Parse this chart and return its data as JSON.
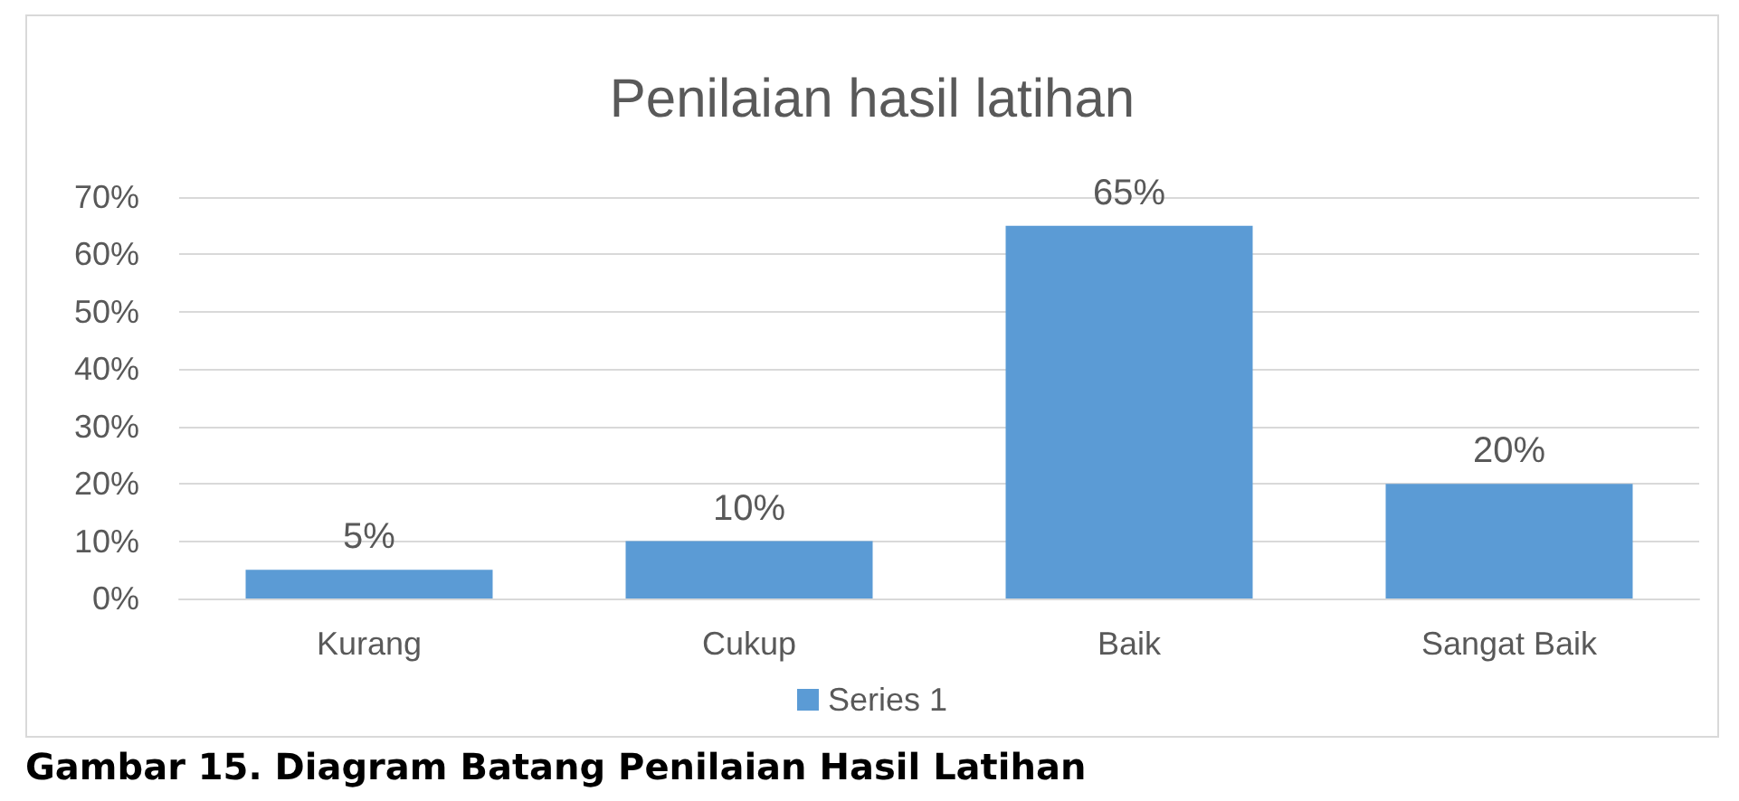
{
  "chart_data": {
    "type": "bar",
    "title": "Penilaian hasil latihan",
    "categories": [
      "Kurang",
      "Cukup",
      "Baik",
      "Sangat Baik"
    ],
    "series": [
      {
        "name": "Series 1",
        "color": "#5b9bd5",
        "values": [
          5,
          10,
          65,
          20
        ],
        "value_labels": [
          "5%",
          "10%",
          "65%",
          "20%"
        ]
      }
    ],
    "ylim": [
      0,
      70
    ],
    "yticks": [
      {
        "value": 0,
        "label": "0%"
      },
      {
        "value": 10,
        "label": "10%"
      },
      {
        "value": 20,
        "label": "20%"
      },
      {
        "value": 30,
        "label": "30%"
      },
      {
        "value": 40,
        "label": "40%"
      },
      {
        "value": 50,
        "label": "50%"
      },
      {
        "value": 60,
        "label": "60%"
      },
      {
        "value": 70,
        "label": "70%"
      }
    ],
    "grid": "y",
    "legend": "bottom",
    "annotations": [
      "Gambar 15. Diagram Batang Penilaian Hasil Latihan"
    ]
  }
}
